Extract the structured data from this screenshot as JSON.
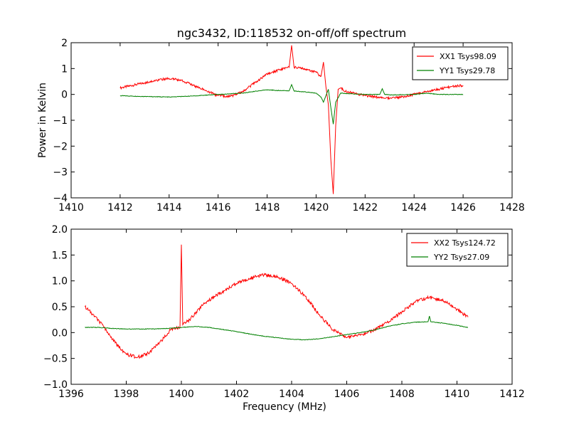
{
  "figure": {
    "title": "ngc3432, ID:118532 on-off/off spectrum"
  },
  "chart_data": [
    {
      "type": "line",
      "title": "ngc3432, ID:118532 on-off/off spectrum",
      "xlabel": "",
      "ylabel": "Power in Kelvin",
      "xlim": [
        1410,
        1428
      ],
      "ylim": [
        -4,
        2
      ],
      "xticks": [
        1410,
        1412,
        1414,
        1416,
        1418,
        1420,
        1422,
        1424,
        1426,
        1428
      ],
      "yticks": [
        -4,
        -3,
        -2,
        -1,
        0,
        1,
        2
      ],
      "xtick_labels": [
        "1410",
        "1412",
        "1414",
        "1416",
        "1418",
        "1420",
        "1422",
        "1424",
        "1426",
        "1428"
      ],
      "ytick_labels": [
        "−4",
        "−3",
        "−2",
        "−1",
        "0",
        "1",
        "2"
      ],
      "grid": false,
      "legend": "top-right",
      "series": [
        {
          "name": "XX1 Tsys98.09",
          "color": "#ff0000",
          "x": [
            1412,
            1413,
            1413.5,
            1414,
            1414.5,
            1415,
            1415.5,
            1416,
            1416.5,
            1417,
            1417.5,
            1418,
            1418.5,
            1418.9,
            1419,
            1419.1,
            1419.5,
            1420,
            1420.2,
            1420.3,
            1420.4,
            1420.5,
            1420.6,
            1420.7,
            1420.8,
            1420.9,
            1421,
            1421.2,
            1421.5,
            1422,
            1422.5,
            1423,
            1423.5,
            1424,
            1424.5,
            1425,
            1425.5,
            1426
          ],
          "y": [
            0.25,
            0.45,
            0.55,
            0.62,
            0.55,
            0.35,
            0.15,
            -0.05,
            -0.08,
            0.1,
            0.45,
            0.78,
            0.95,
            1.05,
            1.9,
            1.05,
            1.0,
            0.85,
            0.7,
            1.25,
            0.3,
            -0.4,
            -2.5,
            -3.85,
            -1.2,
            0.2,
            0.25,
            0.12,
            0.05,
            -0.05,
            -0.1,
            -0.15,
            -0.1,
            0.0,
            0.1,
            0.2,
            0.3,
            0.35
          ]
        },
        {
          "name": "YY1 Tsys29.78",
          "color": "#008000",
          "x": [
            1412,
            1413,
            1414,
            1415,
            1416,
            1417,
            1417.5,
            1418,
            1418.5,
            1418.9,
            1419,
            1419.1,
            1419.5,
            1420,
            1420.2,
            1420.3,
            1420.4,
            1420.5,
            1420.6,
            1420.7,
            1420.8,
            1421,
            1421.5,
            1422,
            1422.6,
            1422.7,
            1422.8,
            1423,
            1424,
            1424.5,
            1425,
            1426
          ],
          "y": [
            -0.05,
            -0.08,
            -0.1,
            -0.06,
            0.0,
            0.05,
            0.12,
            0.18,
            0.15,
            0.14,
            0.38,
            0.13,
            0.1,
            0.05,
            -0.1,
            -0.3,
            -0.05,
            0.2,
            -0.5,
            -1.15,
            -0.3,
            0.05,
            0.02,
            0.0,
            0.0,
            0.22,
            0.0,
            -0.02,
            0.0,
            0.05,
            0.0,
            0.0
          ]
        }
      ]
    },
    {
      "type": "line",
      "title": "",
      "xlabel": "Frequency (MHz)",
      "ylabel": "",
      "xlim": [
        1396,
        1412
      ],
      "ylim": [
        -1.0,
        2.0
      ],
      "xticks": [
        1396,
        1398,
        1400,
        1402,
        1404,
        1406,
        1408,
        1410,
        1412
      ],
      "yticks": [
        -1.0,
        -0.5,
        0.0,
        0.5,
        1.0,
        1.5,
        2.0
      ],
      "xtick_labels": [
        "1396",
        "1398",
        "1400",
        "1402",
        "1404",
        "1406",
        "1408",
        "1410",
        "1412"
      ],
      "ytick_labels": [
        "−1.0",
        "−0.5",
        "0.0",
        "0.5",
        "1.0",
        "1.5",
        "2.0"
      ],
      "grid": false,
      "legend": "top-right",
      "series": [
        {
          "name": "XX2 Tsys124.72",
          "color": "#ff0000",
          "x": [
            1396.5,
            1396.8,
            1397.2,
            1397.6,
            1398,
            1398.4,
            1398.8,
            1399.2,
            1399.6,
            1399.95,
            1400,
            1400.05,
            1400.3,
            1400.8,
            1401.2,
            1401.6,
            1402,
            1402.5,
            1403,
            1403.5,
            1404,
            1404.5,
            1405,
            1405.5,
            1406,
            1406.5,
            1407,
            1407.5,
            1408,
            1408.5,
            1409,
            1409.5,
            1410,
            1410.4
          ],
          "y": [
            0.5,
            0.35,
            0.1,
            -0.2,
            -0.42,
            -0.48,
            -0.4,
            -0.2,
            0.05,
            0.1,
            1.7,
            0.15,
            0.25,
            0.55,
            0.7,
            0.82,
            0.95,
            1.05,
            1.12,
            1.08,
            0.95,
            0.7,
            0.35,
            0.05,
            -0.1,
            -0.05,
            0.05,
            0.2,
            0.4,
            0.6,
            0.68,
            0.62,
            0.45,
            0.3
          ]
        },
        {
          "name": "YY2 Tsys27.09",
          "color": "#008000",
          "x": [
            1396.5,
            1397,
            1397.5,
            1398,
            1398.5,
            1399,
            1399.5,
            1400,
            1400.5,
            1401,
            1401.5,
            1402,
            1402.5,
            1403,
            1403.5,
            1404,
            1404.5,
            1405,
            1405.5,
            1406,
            1406.5,
            1407,
            1407.5,
            1408,
            1408.5,
            1408.95,
            1409,
            1409.05,
            1409.5,
            1410,
            1410.4
          ],
          "y": [
            0.1,
            0.1,
            0.08,
            0.07,
            0.07,
            0.07,
            0.08,
            0.1,
            0.12,
            0.1,
            0.06,
            0.02,
            -0.03,
            -0.07,
            -0.1,
            -0.13,
            -0.14,
            -0.12,
            -0.08,
            -0.04,
            0.0,
            0.05,
            0.12,
            0.17,
            0.2,
            0.21,
            0.32,
            0.21,
            0.18,
            0.14,
            0.1
          ]
        }
      ]
    }
  ]
}
